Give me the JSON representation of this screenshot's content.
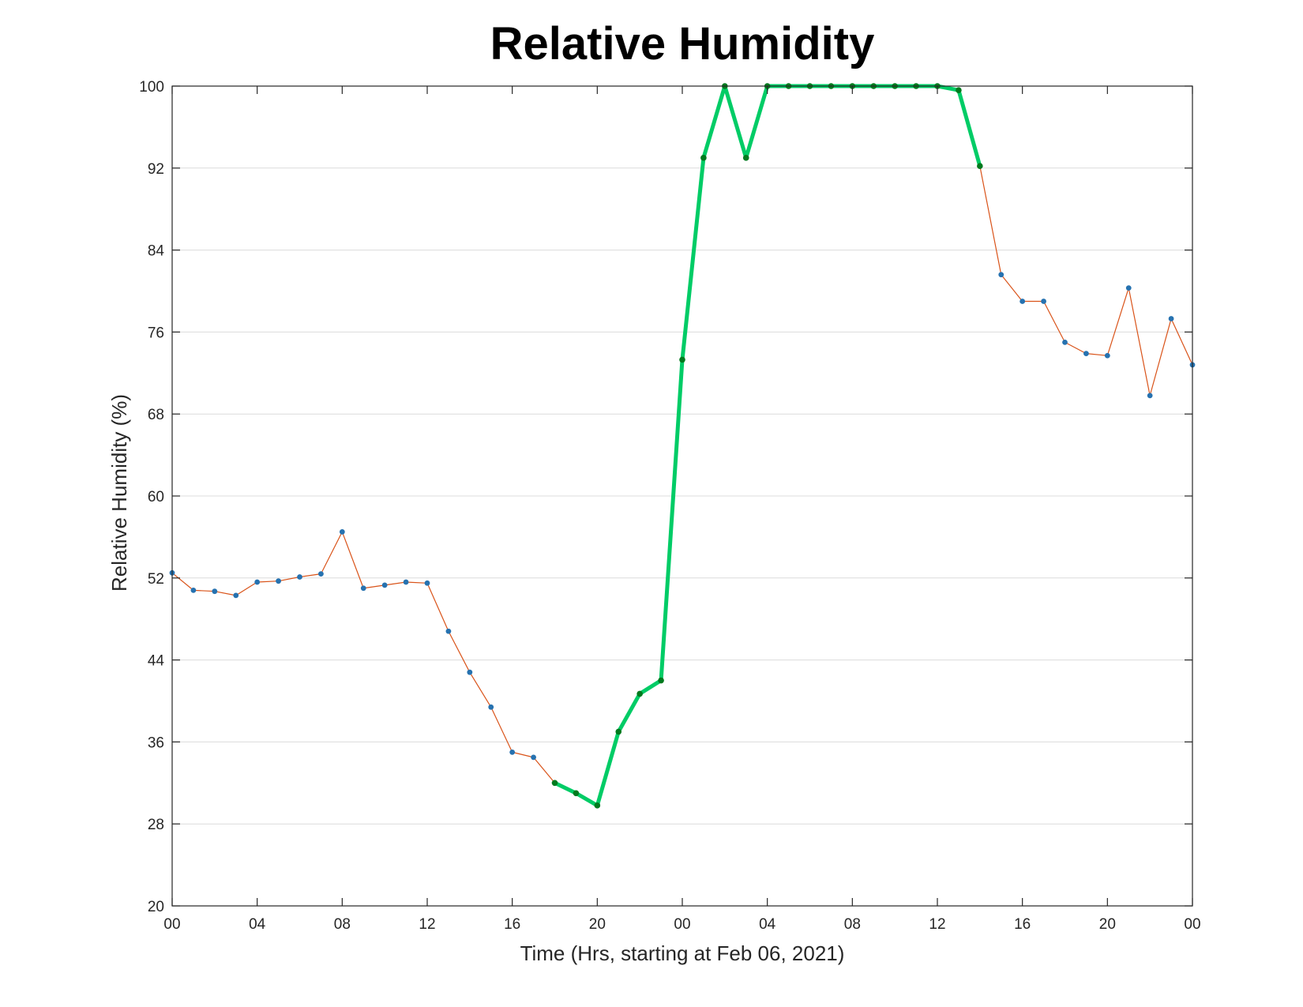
{
  "chart_data": {
    "type": "line",
    "title": "Relative Humidity",
    "xlabel": "Time (Hrs, starting at Feb 06, 2021)",
    "ylabel": "Relative Humidity (%)",
    "xlim": [
      0,
      48
    ],
    "ylim": [
      20,
      100
    ],
    "grid": "horizontal",
    "x_ticks": [
      {
        "value": 0,
        "label": "00"
      },
      {
        "value": 4,
        "label": "04"
      },
      {
        "value": 8,
        "label": "08"
      },
      {
        "value": 12,
        "label": "12"
      },
      {
        "value": 16,
        "label": "16"
      },
      {
        "value": 20,
        "label": "20"
      },
      {
        "value": 24,
        "label": "00"
      },
      {
        "value": 28,
        "label": "04"
      },
      {
        "value": 32,
        "label": "08"
      },
      {
        "value": 36,
        "label": "12"
      },
      {
        "value": 40,
        "label": "16"
      },
      {
        "value": 44,
        "label": "20"
      },
      {
        "value": 48,
        "label": "00"
      }
    ],
    "y_ticks": [
      {
        "value": 20,
        "label": "20"
      },
      {
        "value": 28,
        "label": "28"
      },
      {
        "value": 36,
        "label": "36"
      },
      {
        "value": 44,
        "label": "44"
      },
      {
        "value": 52,
        "label": "52"
      },
      {
        "value": 60,
        "label": "60"
      },
      {
        "value": 68,
        "label": "68"
      },
      {
        "value": 76,
        "label": "76"
      },
      {
        "value": 84,
        "label": "84"
      },
      {
        "value": 92,
        "label": "92"
      },
      {
        "value": 100,
        "label": "100"
      }
    ],
    "series": [
      {
        "color": "#d95319",
        "marker_color": "#2672b0",
        "x": [
          0,
          1,
          2,
          3,
          4,
          5,
          6,
          7,
          8,
          9,
          10,
          11,
          12,
          13,
          14,
          15,
          16,
          17,
          18,
          19,
          20,
          21,
          22,
          23,
          24,
          25,
          26,
          27,
          28,
          29,
          30,
          31,
          32,
          33,
          34,
          35,
          36,
          37,
          38,
          39,
          40,
          41,
          42,
          43,
          44,
          45,
          46,
          47,
          48
        ],
        "values": [
          52.5,
          50.8,
          50.7,
          50.3,
          51.6,
          51.7,
          52.1,
          52.4,
          56.5,
          51.0,
          51.3,
          51.6,
          51.5,
          46.8,
          42.8,
          39.4,
          35.0,
          34.5,
          32.0,
          31.0,
          29.8,
          37.0,
          40.7,
          42.0,
          73.3,
          93.0,
          100.0,
          93.0,
          100.0,
          100.0,
          100.0,
          100.0,
          100.0,
          100.0,
          100.0,
          100.0,
          100.0,
          99.6,
          92.2,
          81.6,
          79.0,
          79.0,
          75.0,
          73.9,
          73.7,
          80.3,
          69.8,
          77.3,
          72.8
        ]
      },
      {
        "color": "#00cc66",
        "marker_color": "#007a1e",
        "x": [
          18,
          19,
          20,
          21,
          22,
          23,
          24,
          25,
          26,
          27,
          28,
          29,
          30,
          31,
          32,
          33,
          34,
          35,
          36,
          37,
          38
        ],
        "values": [
          32.0,
          31.0,
          29.8,
          37.0,
          40.7,
          42.0,
          73.3,
          93.0,
          100.0,
          93.0,
          100.0,
          100.0,
          100.0,
          100.0,
          100.0,
          100.0,
          100.0,
          100.0,
          100.0,
          99.6,
          92.2
        ]
      }
    ]
  }
}
